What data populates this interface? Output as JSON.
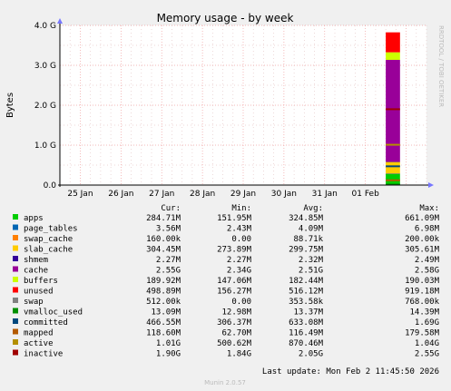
{
  "chart_data": {
    "type": "area",
    "title": "Memory usage - by week",
    "ylabel": "Bytes",
    "xlabel": "",
    "side_label": "RRDTOOL / TOBI OETIKER",
    "footer": "Munin 2.0.57",
    "last_update": "Last update: Mon Feb  2 11:45:50 2026",
    "grid": true,
    "legend_placement": "bottom",
    "x_range": [
      "24 Jan 12:00",
      "02 Feb 12:00"
    ],
    "x_ticks": [
      "25 Jan",
      "26 Jan",
      "27 Jan",
      "28 Jan",
      "29 Jan",
      "30 Jan",
      "31 Jan",
      "01 Feb"
    ],
    "ylim": [
      0,
      4.0
    ],
    "y_unit": "G",
    "y_ticks": [
      "0.0",
      "1.0 G",
      "2.0 G",
      "3.0 G",
      "4.0 G"
    ],
    "data_window_days": [
      8.0,
      8.35
    ],
    "columns": [
      "",
      "Cur:",
      "Min:",
      "Avg:",
      "Max:"
    ],
    "series": [
      {
        "name": "apps",
        "color": "#00cc00",
        "cur": "284.71M",
        "min": "151.95M",
        "avg": "324.85M",
        "max": "661.09M",
        "value_g": 0.28
      },
      {
        "name": "page_tables",
        "color": "#0066b3",
        "cur": "3.56M",
        "min": "2.43M",
        "avg": "4.09M",
        "max": "6.98M",
        "value_g": 0.004
      },
      {
        "name": "swap_cache",
        "color": "#ff8000",
        "cur": "160.00k",
        "min": "0.00",
        "avg": "88.71k",
        "max": "200.00k",
        "value_g": 0.0
      },
      {
        "name": "slab_cache",
        "color": "#ffcc00",
        "cur": "304.45M",
        "min": "273.89M",
        "avg": "299.75M",
        "max": "305.61M",
        "value_g": 0.3
      },
      {
        "name": "shmem",
        "color": "#330099",
        "cur": "2.27M",
        "min": "2.27M",
        "avg": "2.32M",
        "max": "2.49M",
        "value_g": 0.002
      },
      {
        "name": "cache",
        "color": "#990099",
        "cur": "2.55G",
        "min": "2.34G",
        "avg": "2.51G",
        "max": "2.58G",
        "value_g": 2.55
      },
      {
        "name": "buffers",
        "color": "#ccff00",
        "cur": "189.92M",
        "min": "147.06M",
        "avg": "182.44M",
        "max": "190.03M",
        "value_g": 0.19
      },
      {
        "name": "unused",
        "color": "#ff0000",
        "cur": "498.89M",
        "min": "156.27M",
        "avg": "516.12M",
        "max": "919.18M",
        "value_g": 0.5
      },
      {
        "name": "swap",
        "color": "#808080",
        "cur": "512.00k",
        "min": "0.00",
        "avg": "353.58k",
        "max": "768.00k",
        "value_g": 0.0
      },
      {
        "name": "vmalloc_used",
        "color": "#008f00",
        "cur": "13.09M",
        "min": "12.98M",
        "avg": "13.37M",
        "max": "14.39M",
        "value_g": 0.013
      },
      {
        "name": "committed",
        "color": "#00487d",
        "cur": "466.55M",
        "min": "306.37M",
        "avg": "633.08M",
        "max": "1.69G",
        "value_g": 0.47
      },
      {
        "name": "mapped",
        "color": "#b35a00",
        "cur": "118.60M",
        "min": "62.70M",
        "avg": "116.49M",
        "max": "179.58M",
        "value_g": 0.12
      },
      {
        "name": "active",
        "color": "#b38f00",
        "cur": "1.01G",
        "min": "500.62M",
        "avg": "870.46M",
        "max": "1.04G",
        "value_g": 1.01
      },
      {
        "name": "inactive",
        "color": "#a00000",
        "cur": "1.90G",
        "min": "1.84G",
        "avg": "2.05G",
        "max": "2.55G",
        "value_g": 1.9
      }
    ]
  }
}
